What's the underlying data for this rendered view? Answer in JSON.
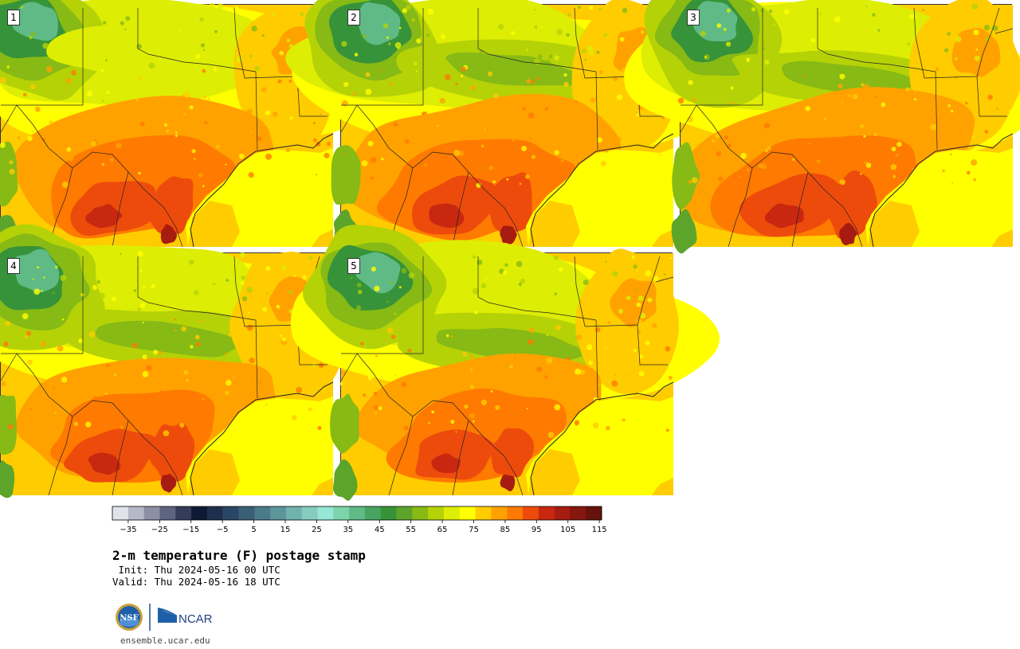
{
  "panels": [
    {
      "label": "1",
      "variant": 0
    },
    {
      "label": "2",
      "variant": 1
    },
    {
      "label": "3",
      "variant": 2
    },
    {
      "label": "4",
      "variant": 3
    },
    {
      "label": "5",
      "variant": 4
    }
  ],
  "colorbar": {
    "colors": [
      "#e0e3ea",
      "#b5b9c7",
      "#8d90a5",
      "#5d6581",
      "#343c5a",
      "#0e1a33",
      "#1e2f4e",
      "#2b4664",
      "#3b5f77",
      "#4b7a89",
      "#5c969c",
      "#70b2ae",
      "#86cbc0",
      "#97e6d6",
      "#7dd4ac",
      "#5fba86",
      "#47a561",
      "#379339",
      "#5ca52a",
      "#87ba14",
      "#b5d207",
      "#dded03",
      "#ffff00",
      "#ffcc00",
      "#ffa200",
      "#ff7a00",
      "#ed4b0c",
      "#c8280f",
      "#a71c10",
      "#86170e",
      "#64140d"
    ],
    "tick_labels": [
      "−35",
      "−25",
      "−15",
      "−5",
      "5",
      "15",
      "25",
      "35",
      "45",
      "55",
      "65",
      "75",
      "85",
      "95",
      "105",
      "115"
    ]
  },
  "title": "2-m temperature (F) postage stamp",
  "init": " Init: Thu 2024-05-16 00 UTC",
  "valid": "Valid: Thu 2024-05-16 18 UTC",
  "logos": {
    "nsf_text": "NSF",
    "ncar_text": "NCAR"
  },
  "url": "ensemble.ucar.edu"
}
